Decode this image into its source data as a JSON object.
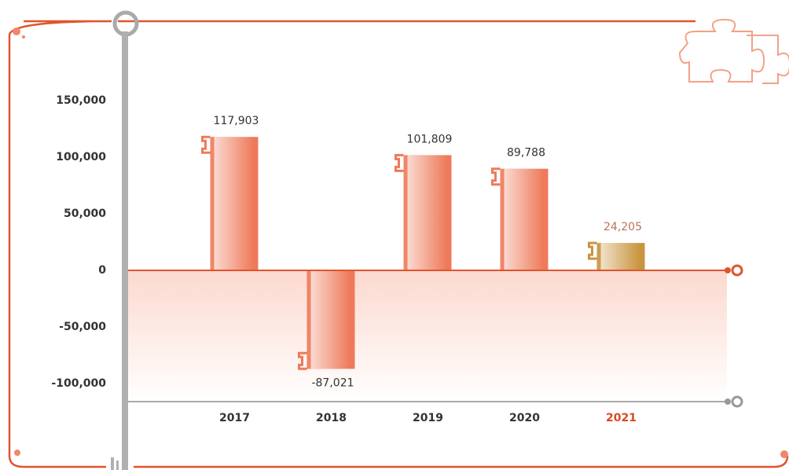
{
  "chart_data": {
    "type": "bar",
    "categories": [
      "2017",
      "2018",
      "2019",
      "2020",
      "2021"
    ],
    "values": [
      117903,
      -87021,
      101809,
      89788,
      24205
    ],
    "value_labels": [
      "117,903",
      "-87,021",
      "101,809",
      "89,788",
      "24,205"
    ],
    "colors": [
      "#ee7a5a",
      "#ee7a5a",
      "#ee7a5a",
      "#ee7a5a",
      "#c9953f"
    ],
    "tick_label_colors": [
      "#333333",
      "#333333",
      "#333333",
      "#333333",
      "#d9481f"
    ],
    "ylim": [
      -116000,
      150000
    ],
    "yticks": [
      {
        "value": 150000,
        "label": "150,000"
      },
      {
        "value": 100000,
        "label": "100,000"
      },
      {
        "value": 50000,
        "label": "50,000"
      },
      0,
      {
        "value": -50000,
        "label": "-50,000"
      },
      {
        "value": -100000,
        "label": "-100,000"
      }
    ]
  }
}
